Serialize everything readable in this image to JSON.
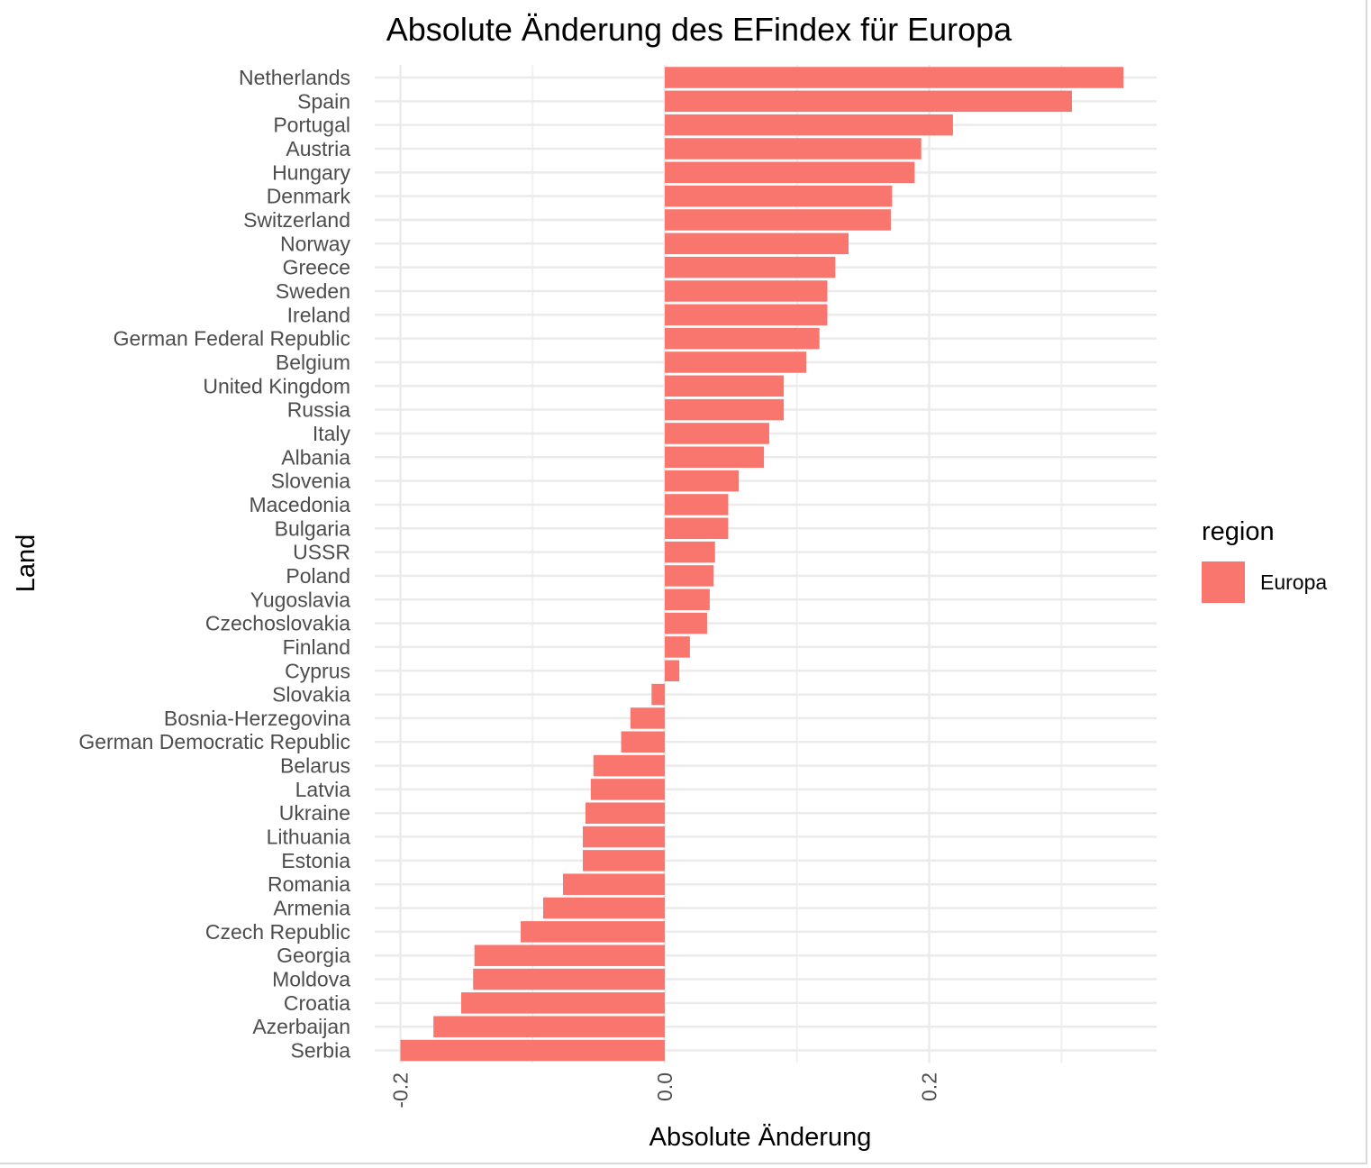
{
  "chart_data": {
    "type": "bar",
    "orientation": "horizontal",
    "title": "Absolute Änderung des EFindex für Europa",
    "xlabel": "Absolute Änderung",
    "ylabel": "Land",
    "xlim": [
      -0.2,
      0.347
    ],
    "xticks": [
      -0.2,
      0.0,
      0.2
    ],
    "xtick_labels": [
      "-0.2",
      "0.0",
      "0.2"
    ],
    "grid": true,
    "legend": {
      "title": "region",
      "position": "right",
      "entries": [
        {
          "label": "Europa",
          "color": "#F8766D"
        }
      ]
    },
    "categories": [
      "Netherlands",
      "Spain",
      "Portugal",
      "Austria",
      "Hungary",
      "Denmark",
      "Switzerland",
      "Norway",
      "Greece",
      "Sweden",
      "Ireland",
      "German Federal Republic",
      "Belgium",
      "United Kingdom",
      "Russia",
      "Italy",
      "Albania",
      "Slovenia",
      "Macedonia",
      "Bulgaria",
      "USSR",
      "Poland",
      "Yugoslavia",
      "Czechoslovakia",
      "Finland",
      "Cyprus",
      "Slovakia",
      "Bosnia-Herzegovina",
      "German Democratic Republic",
      "Belarus",
      "Latvia",
      "Ukraine",
      "Lithuania",
      "Estonia",
      "Romania",
      "Armenia",
      "Czech Republic",
      "Georgia",
      "Moldova",
      "Croatia",
      "Azerbaijan",
      "Serbia"
    ],
    "series": [
      {
        "name": "Europa",
        "values": [
          0.347,
          0.308,
          0.218,
          0.194,
          0.189,
          0.172,
          0.171,
          0.139,
          0.129,
          0.123,
          0.123,
          0.117,
          0.107,
          0.09,
          0.09,
          0.079,
          0.075,
          0.056,
          0.048,
          0.048,
          0.038,
          0.037,
          0.034,
          0.032,
          0.019,
          0.011,
          -0.01,
          -0.026,
          -0.033,
          -0.054,
          -0.056,
          -0.06,
          -0.062,
          -0.062,
          -0.077,
          -0.092,
          -0.109,
          -0.144,
          -0.145,
          -0.154,
          -0.175,
          -0.2
        ]
      }
    ]
  }
}
